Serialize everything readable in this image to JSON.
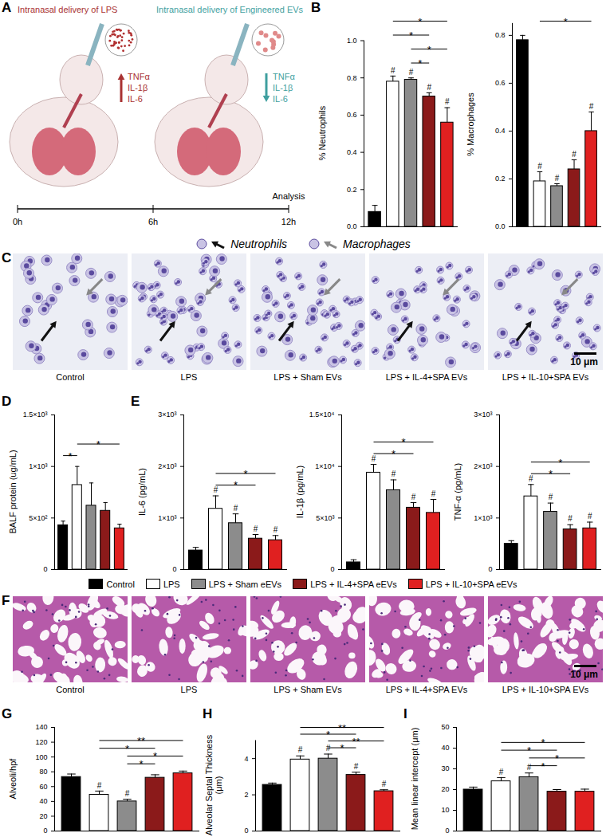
{
  "figure": {
    "schematic": {
      "panel": "A",
      "left_label": "Intranasal delivery of LPS",
      "right_label": "Intranasal delivery of Engineered EVs",
      "left_cytokines": [
        "TNFα",
        "IL-1β",
        "IL-6"
      ],
      "right_cytokines": [
        "TNFα",
        "IL-1β",
        "IL-6"
      ],
      "timeline": [
        "0h",
        "6h",
        "12h"
      ],
      "timeline_end_label": "Analysis"
    },
    "micrographs_C": {
      "panel": "C",
      "legend": [
        "Neutrophils",
        "Macrophages"
      ],
      "labels": [
        "Control",
        "LPS",
        "LPS + Sham EVs",
        "LPS + IL-4+SPA EVs",
        "LPS + IL-10+SPA EVs"
      ],
      "scale_bar": "10 μm"
    },
    "legend": {
      "labels": [
        "Control",
        "LPS",
        "LPS + Sham eEVs",
        "LPS + IL-4+SPA eEVs",
        "LPS + IL-10+SPA eEVs"
      ],
      "colors": [
        "#000000",
        "#ffffff",
        "#8c8c8c",
        "#8b1a1a",
        "#e02020"
      ]
    },
    "micrographs_F": {
      "panel": "F",
      "labels": [
        "Control",
        "LPS",
        "LPS + Sham EVs",
        "LPS + IL-4+SPA EVs",
        "LPS + IL-10+SPA EVs"
      ],
      "scale_bar": "10 μm"
    }
  },
  "chart_data": [
    {
      "panel": "B",
      "type": "bar",
      "ylabel": "% Neutrophils",
      "tick_labels": "y",
      "categories": [
        "Control",
        "LPS",
        "LPS + Sham eEVs",
        "LPS + IL-4+SPA eEVs",
        "LPS + IL-10+SPA eEVs"
      ],
      "colors": [
        "#000000",
        "#ffffff",
        "#8c8c8c",
        "#8b1a1a",
        "#e02020"
      ],
      "values": [
        0.08,
        0.78,
        0.79,
        0.7,
        0.56
      ],
      "errors": [
        0.035,
        0.03,
        0.01,
        0.02,
        0.08
      ],
      "ylim": [
        0,
        1.0
      ],
      "yticks": [
        {
          "value": 0,
          "label": "0.0"
        },
        0.2,
        0.4,
        0.6,
        0.8,
        {
          "value": 1,
          "label": "1.0"
        }
      ],
      "significance": [
        null,
        "#",
        "#",
        "#",
        "#"
      ],
      "brackets": [
        {
          "from": "LPS + Sham eEVs",
          "to": "LPS + IL-4+SPA eEVs",
          "label": "*"
        },
        {
          "from": "LPS + Sham eEVs",
          "to": "LPS + IL-10+SPA eEVs",
          "label": "*"
        },
        {
          "from": "LPS",
          "to": "LPS + IL-4+SPA eEVs",
          "label": "*"
        },
        {
          "from": "LPS",
          "to": "LPS + IL-10+SPA eEVs",
          "label": "*"
        }
      ]
    },
    {
      "type": "bar",
      "ylabel": "% Macrophages",
      "tick_labels": "y",
      "categories": [
        "Control",
        "LPS",
        "LPS + Sham eEVs",
        "LPS + IL-4+SPA eEVs",
        "LPS + IL-10+SPA eEVs"
      ],
      "colors": [
        "#000000",
        "#ffffff",
        "#8c8c8c",
        "#8b1a1a",
        "#e02020"
      ],
      "values": [
        0.78,
        0.19,
        0.17,
        0.24,
        0.4
      ],
      "errors": [
        0.02,
        0.04,
        0.01,
        0.04,
        0.08
      ],
      "ylim": [
        0,
        0.85
      ],
      "yticks": [
        {
          "value": 0,
          "label": "0.0"
        },
        0.2,
        0.4,
        0.6,
        0.8
      ],
      "significance": [
        null,
        "#",
        "#",
        "#",
        "#"
      ],
      "brackets": [
        {
          "from": "LPS",
          "to": "LPS + IL-10+SPA eEVs",
          "label": "*"
        }
      ]
    },
    {
      "panel": "D",
      "type": "bar",
      "ylabel": "BALF protein (ug/mL)",
      "tick_labels": "y",
      "categories": [
        "Control",
        "LPS",
        "LPS + Sham eEVs",
        "LPS + IL-4+SPA eEVs",
        "LPS + IL-10+SPA eEVs"
      ],
      "colors": [
        "#000000",
        "#ffffff",
        "#8c8c8c",
        "#8b1a1a",
        "#e02020"
      ],
      "values": [
        430,
        820,
        620,
        570,
        400
      ],
      "errors": [
        40,
        180,
        220,
        80,
        40
      ],
      "ylim": [
        0,
        1500
      ],
      "yticks": [
        0,
        {
          "value": 500,
          "label": "5×10²"
        },
        {
          "value": 1000,
          "label": "1×10³"
        },
        {
          "value": 1500,
          "label": "1.5×10³"
        }
      ],
      "brackets": [
        {
          "from": "Control",
          "to": "LPS",
          "label": "*"
        },
        {
          "from": "LPS",
          "to": "LPS + IL-10+SPA eEVs",
          "label": "*"
        }
      ]
    },
    {
      "panel": "E",
      "type": "bar",
      "ylabel": "IL-6 (pg/mL)",
      "tick_labels": "y",
      "categories": [
        "Control",
        "LPS",
        "LPS + Sham eEVs",
        "LPS + IL-4+SPA eEVs",
        "LPS + IL-10+SPA eEVs"
      ],
      "colors": [
        "#000000",
        "#ffffff",
        "#8c8c8c",
        "#8b1a1a",
        "#e02020"
      ],
      "values": [
        370,
        1180,
        900,
        600,
        570
      ],
      "errors": [
        60,
        250,
        180,
        80,
        90
      ],
      "ylim": [
        0,
        3000
      ],
      "yticks": [
        0,
        {
          "value": 1000,
          "label": "1×10³"
        },
        {
          "value": 2000,
          "label": "2×10³"
        },
        {
          "value": 3000,
          "label": "3×10³"
        }
      ],
      "significance": [
        null,
        "#",
        "#",
        "#",
        "#"
      ],
      "brackets": [
        {
          "from": "LPS",
          "to": "LPS + IL-4+SPA eEVs",
          "label": "*"
        },
        {
          "from": "LPS",
          "to": "LPS + IL-10+SPA eEVs",
          "label": "*"
        }
      ]
    },
    {
      "type": "bar",
      "ylabel": "IL-1β (pg/mL)",
      "tick_labels": "y",
      "categories": [
        "Control",
        "LPS",
        "LPS + Sham eEVs",
        "LPS + IL-4+SPA eEVs",
        "LPS + IL-10+SPA eEVs"
      ],
      "colors": [
        "#000000",
        "#ffffff",
        "#8c8c8c",
        "#8b1a1a",
        "#e02020"
      ],
      "values": [
        700,
        9400,
        7700,
        6000,
        5500
      ],
      "errors": [
        250,
        800,
        1000,
        500,
        1300
      ],
      "ylim": [
        0,
        15000
      ],
      "yticks": [
        0,
        {
          "value": 5000,
          "label": "5×10³"
        },
        {
          "value": 10000,
          "label": "1×10⁴"
        },
        {
          "value": 15000,
          "label": "1.5×10⁴"
        }
      ],
      "significance": [
        null,
        "#",
        "#",
        "#",
        "#"
      ],
      "brackets": [
        {
          "from": "LPS",
          "to": "LPS + IL-4+SPA eEVs",
          "label": "*"
        },
        {
          "from": "LPS",
          "to": "LPS + IL-10+SPA eEVs",
          "label": "*"
        }
      ]
    },
    {
      "type": "bar",
      "ylabel": "TNF-α (pg/mL)",
      "tick_labels": "y",
      "categories": [
        "Control",
        "LPS",
        "LPS + Sham eEVs",
        "LPS + IL-4+SPA eEVs",
        "LPS + IL-10+SPA eEVs"
      ],
      "colors": [
        "#000000",
        "#ffffff",
        "#8c8c8c",
        "#8b1a1a",
        "#e02020"
      ],
      "values": [
        500,
        1420,
        1120,
        780,
        800
      ],
      "errors": [
        60,
        230,
        170,
        90,
        120
      ],
      "ylim": [
        0,
        3000
      ],
      "yticks": [
        0,
        {
          "value": 1000,
          "label": "1×10³"
        },
        {
          "value": 2000,
          "label": "2×10³"
        },
        {
          "value": 3000,
          "label": "3×10³"
        }
      ],
      "significance": [
        null,
        "#",
        "#",
        "#",
        "#"
      ],
      "brackets": [
        {
          "from": "LPS",
          "to": "LPS + IL-4+SPA eEVs",
          "label": "*"
        },
        {
          "from": "LPS",
          "to": "LPS + IL-10+SPA eEVs",
          "label": "*"
        }
      ]
    },
    {
      "panel": "G",
      "type": "bar",
      "ylabel": "Alveoli/hpf",
      "tick_labels": "y",
      "categories": [
        "Control",
        "LPS",
        "LPS + Sham eEVs",
        "LPS + IL-4+SPA eEVs",
        "LPS + IL-10+SPA eEVs"
      ],
      "colors": [
        "#000000",
        "#ffffff",
        "#8c8c8c",
        "#8b1a1a",
        "#e02020"
      ],
      "values": [
        73,
        49,
        40,
        72,
        78
      ],
      "errors": [
        4,
        5,
        3,
        4,
        3
      ],
      "ylim": [
        0,
        140
      ],
      "yticks": [
        0,
        20,
        40,
        60,
        80,
        100,
        120,
        140
      ],
      "significance": [
        null,
        "#",
        "#",
        null,
        null
      ],
      "brackets": [
        {
          "from": "LPS + Sham eEVs",
          "to": "LPS + IL-4+SPA eEVs",
          "label": "*"
        },
        {
          "from": "LPS + Sham eEVs",
          "to": "LPS + IL-10+SPA eEVs",
          "label": "*"
        },
        {
          "from": "LPS",
          "to": "LPS + IL-4+SPA eEVs",
          "label": "*"
        },
        {
          "from": "LPS",
          "to": "LPS + IL-10+SPA eEVs",
          "label": "**"
        }
      ]
    },
    {
      "panel": "H",
      "type": "bar",
      "ylabel": "Alveolar Septal Thickness (μm)",
      "tick_labels": "y",
      "categories": [
        "Control",
        "LPS",
        "LPS + Sham eEVs",
        "LPS + IL-4+SPA eEVs",
        "LPS + IL-10+SPA eEVs"
      ],
      "colors": [
        "#000000",
        "#ffffff",
        "#8c8c8c",
        "#8b1a1a",
        "#e02020"
      ],
      "values": [
        2.55,
        3.95,
        4.0,
        3.1,
        2.2
      ],
      "errors": [
        0.1,
        0.2,
        0.25,
        0.15,
        0.08
      ],
      "ylim": [
        0,
        5
      ],
      "yticks": [
        0,
        2,
        4
      ],
      "significance": [
        null,
        "#",
        "#",
        "#",
        "#"
      ],
      "brackets": [
        {
          "from": "LPS + Sham eEVs",
          "to": "LPS + IL-4+SPA eEVs",
          "label": "*"
        },
        {
          "from": "LPS + Sham eEVs",
          "to": "LPS + IL-10+SPA eEVs",
          "label": "**"
        },
        {
          "from": "LPS",
          "to": "LPS + IL-4+SPA eEVs",
          "label": "*"
        },
        {
          "from": "LPS",
          "to": "LPS + IL-10+SPA eEVs",
          "label": "**"
        }
      ]
    },
    {
      "panel": "I",
      "type": "bar",
      "ylabel": "Mean linear intercept (μm)",
      "tick_labels": "y",
      "categories": [
        "Control",
        "LPS",
        "LPS + Sham eEVs",
        "LPS + IL-4+SPA eEVs",
        "LPS + IL-10+SPA eEVs"
      ],
      "colors": [
        "#000000",
        "#ffffff",
        "#8c8c8c",
        "#8b1a1a",
        "#e02020"
      ],
      "values": [
        20,
        24,
        26,
        19,
        19
      ],
      "errors": [
        1.2,
        1.8,
        2,
        1,
        1.2
      ],
      "ylim": [
        0,
        50
      ],
      "yticks": [
        0,
        10,
        20,
        30,
        40,
        50
      ],
      "significance": [
        null,
        "#",
        "#",
        null,
        null
      ],
      "brackets": [
        {
          "from": "LPS + Sham eEVs",
          "to": "LPS + IL-4+SPA eEVs",
          "label": "*"
        },
        {
          "from": "LPS + Sham eEVs",
          "to": "LPS + IL-10+SPA eEVs",
          "label": "*"
        },
        {
          "from": "LPS",
          "to": "LPS + IL-4+SPA eEVs",
          "label": "*"
        },
        {
          "from": "LPS",
          "to": "LPS + IL-10+SPA eEVs",
          "label": "*"
        }
      ]
    }
  ]
}
